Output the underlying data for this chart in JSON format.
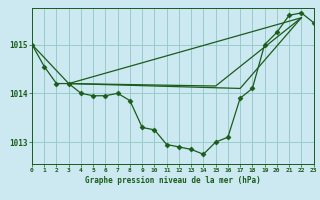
{
  "background_color": "#cce8f0",
  "grid_color": "#99cccc",
  "line_color": "#1a5c1a",
  "marker_color": "#1a5c1a",
  "title": "Graphe pression niveau de la mer (hPa)",
  "xlim": [
    0,
    23
  ],
  "ylim": [
    1012.55,
    1015.75
  ],
  "yticks": [
    1013,
    1014,
    1015
  ],
  "xticks": [
    0,
    1,
    2,
    3,
    4,
    5,
    6,
    7,
    8,
    9,
    10,
    11,
    12,
    13,
    14,
    15,
    16,
    17,
    18,
    19,
    20,
    21,
    22,
    23
  ],
  "line1_x": [
    0,
    1,
    2,
    3,
    4,
    5,
    6,
    7,
    8,
    9,
    10,
    11,
    12,
    13,
    14,
    15,
    16,
    17,
    18,
    19,
    20,
    21,
    22,
    23
  ],
  "line1_y": [
    1015.0,
    1014.55,
    1014.2,
    1014.2,
    1014.0,
    1013.95,
    1013.95,
    1014.0,
    1013.85,
    1013.3,
    1013.25,
    1012.95,
    1012.9,
    1012.85,
    1012.75,
    1013.0,
    1013.1,
    1013.9,
    1014.1,
    1015.0,
    1015.25,
    1015.6,
    1015.65,
    1015.45
  ],
  "line2_x": [
    0,
    3,
    22
  ],
  "line2_y": [
    1015.0,
    1014.2,
    1015.55
  ],
  "line3_x": [
    3,
    15,
    22
  ],
  "line3_y": [
    1014.2,
    1014.15,
    1015.55
  ],
  "line4_x": [
    3,
    17,
    22
  ],
  "line4_y": [
    1014.2,
    1014.1,
    1015.55
  ]
}
